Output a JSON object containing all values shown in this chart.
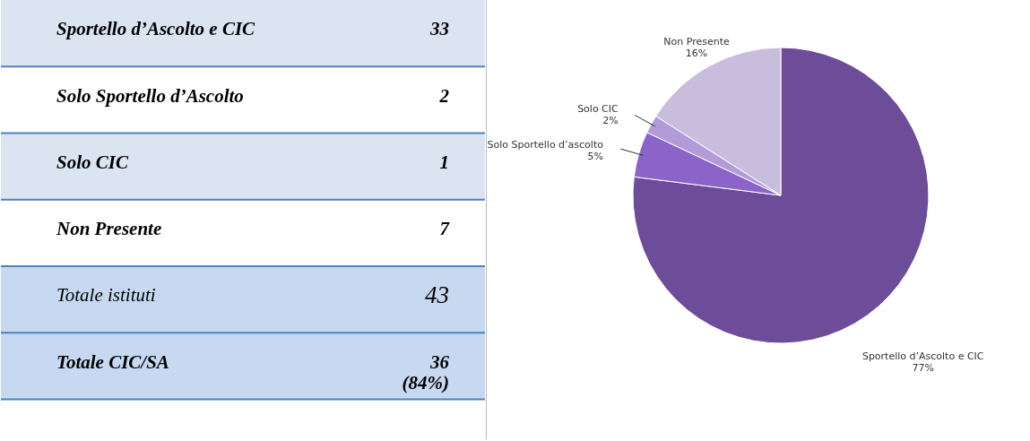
{
  "chart_data": [
    {
      "type": "other",
      "categories": [
        "Sportello d’Ascolto e CIC",
        "Solo Sportello d’Ascolto",
        "Solo CIC",
        "Non Presente",
        "Totale istituti",
        "Totale CIC/SA"
      ],
      "value_labels": [
        "33",
        "2",
        "1",
        "7",
        "43",
        "36 (84%)"
      ]
    },
    {
      "type": "pie",
      "categories": [
        "Sportello d’Ascolto e CIC",
        "Solo Sportello d’ascolto",
        "Solo CIC",
        "Non Presente"
      ],
      "values": [
        77,
        5,
        2,
        16
      ],
      "colors": [
        "#6d4c9a",
        "#8c63c9",
        "#b39ad8",
        "#c8bddd"
      ],
      "value_labels": [
        "77%",
        "5%",
        "2%",
        "16%"
      ]
    }
  ]
}
